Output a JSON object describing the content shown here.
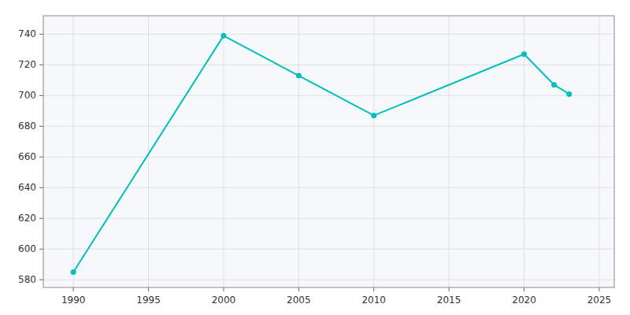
{
  "chart_data": {
    "type": "line",
    "x": [
      1990,
      2000,
      2005,
      2010,
      2020,
      2022,
      2023
    ],
    "values": [
      585,
      739,
      713,
      687,
      727,
      707,
      701
    ],
    "color": "#00BFBF",
    "marker": "circle",
    "xlim": [
      1988,
      2026
    ],
    "ylim": [
      575,
      752
    ],
    "xticks": [
      1990,
      1995,
      2000,
      2005,
      2010,
      2015,
      2020,
      2025
    ],
    "yticks": [
      580,
      600,
      620,
      640,
      660,
      680,
      700,
      720,
      740
    ],
    "grid": true
  }
}
